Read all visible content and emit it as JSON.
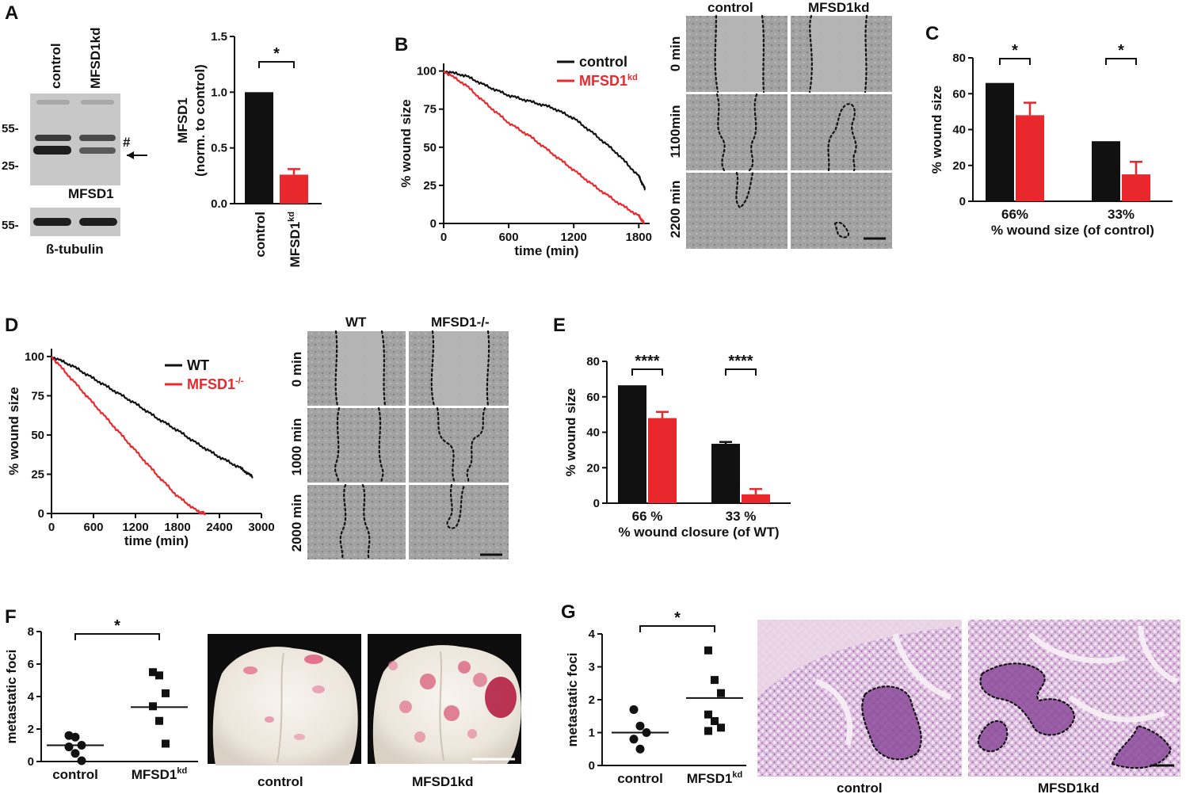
{
  "colors": {
    "control": "#111111",
    "knockdown": "#e8282d"
  },
  "chart_data": [
    {
      "panel": "A",
      "type": "blot",
      "lane_labels": [
        "control",
        "MFSD1kd"
      ],
      "markers_top": [
        "55-",
        "25-"
      ],
      "markers_bottom": [
        "55-"
      ],
      "blot_top_label": "MFSD1",
      "blot_bottom_label": "ß-tubulin",
      "annotation": "#"
    },
    {
      "panel": "A",
      "type": "bar",
      "categories": [
        "control",
        "MFSD1kd"
      ],
      "values": [
        1.0,
        0.26
      ],
      "errors": [
        0,
        0.05
      ],
      "ylabel": "MFSD1",
      "ylabel2": "(norm. to control)",
      "ylim": [
        0,
        1.5
      ],
      "yticks": [
        "0.0",
        "0.5",
        "1.0",
        "1.5"
      ],
      "significance": "*"
    },
    {
      "panel": "B",
      "type": "line",
      "series": [
        {
          "name": "control",
          "points": [
            [
              0,
              100
            ],
            [
              200,
              97
            ],
            [
              400,
              90
            ],
            [
              600,
              84
            ],
            [
              800,
              80
            ],
            [
              1000,
              76
            ],
            [
              1200,
              69
            ],
            [
              1400,
              58
            ],
            [
              1600,
              46
            ],
            [
              1800,
              31
            ],
            [
              1860,
              22
            ]
          ]
        },
        {
          "name": "MFSD1kd",
          "points": [
            [
              0,
              100
            ],
            [
              200,
              91
            ],
            [
              400,
              78
            ],
            [
              600,
              66
            ],
            [
              800,
              57
            ],
            [
              1000,
              46
            ],
            [
              1200,
              35
            ],
            [
              1400,
              24
            ],
            [
              1600,
              14
            ],
            [
              1800,
              5
            ],
            [
              1850,
              0
            ]
          ]
        }
      ],
      "xlabel": "time (min)",
      "ylabel": "% wound size",
      "xlim": [
        0,
        1900
      ],
      "ylim": [
        0,
        105
      ],
      "xticks": [
        "0",
        "600",
        "1200",
        "1800"
      ],
      "yticks": [
        "0",
        "25",
        "50",
        "75",
        "100"
      ]
    },
    {
      "panel": "B",
      "type": "image-grid",
      "columns": [
        "control",
        "MFSD1kd"
      ],
      "rows": [
        "0 min",
        "1100min",
        "2200 min"
      ]
    },
    {
      "panel": "C",
      "type": "bar",
      "categories": [
        "66%",
        "33%"
      ],
      "series": [
        {
          "name": "control",
          "values": [
            66,
            33.5
          ],
          "errors": [
            0,
            0
          ]
        },
        {
          "name": "MFSD1kd",
          "values": [
            48,
            15
          ],
          "errors": [
            7,
            7
          ]
        }
      ],
      "xlabel": "% wound size (of control)",
      "ylabel": "% wound size",
      "ylim": [
        0,
        80
      ],
      "yticks": [
        "0",
        "20",
        "40",
        "60",
        "80"
      ],
      "significance": [
        "*",
        "*"
      ]
    },
    {
      "panel": "D",
      "type": "line",
      "series": [
        {
          "name": "WT",
          "points": [
            [
              0,
              100
            ],
            [
              300,
              94
            ],
            [
              600,
              86
            ],
            [
              900,
              78
            ],
            [
              1200,
              70
            ],
            [
              1500,
              61
            ],
            [
              1800,
              53
            ],
            [
              2100,
              44
            ],
            [
              2400,
              36
            ],
            [
              2700,
              29
            ],
            [
              2880,
              23
            ]
          ]
        },
        {
          "name": "MFSD1-/-",
          "points": [
            [
              0,
              100
            ],
            [
              300,
              85
            ],
            [
              600,
              70
            ],
            [
              900,
              55
            ],
            [
              1200,
              40
            ],
            [
              1500,
              25
            ],
            [
              1800,
              11
            ],
            [
              2100,
              1
            ],
            [
              2200,
              0
            ]
          ]
        }
      ],
      "xlabel": "time (min)",
      "ylabel": "% wound size",
      "xlim": [
        0,
        3000
      ],
      "ylim": [
        0,
        105
      ],
      "xticks": [
        "0",
        "600",
        "1200",
        "1800",
        "2400",
        "3000"
      ],
      "yticks": [
        "0",
        "25",
        "50",
        "75",
        "100"
      ]
    },
    {
      "panel": "D",
      "type": "image-grid",
      "columns": [
        "WT",
        "MFSD1-/-"
      ],
      "rows": [
        "0 min",
        "1000 min",
        "2000 min"
      ]
    },
    {
      "panel": "E",
      "type": "bar",
      "categories": [
        "66 %",
        "33 %"
      ],
      "series": [
        {
          "name": "WT",
          "values": [
            66.5,
            33.5
          ],
          "errors": [
            0,
            1
          ]
        },
        {
          "name": "MFSD1-/-",
          "values": [
            48,
            5
          ],
          "errors": [
            3.5,
            3
          ]
        }
      ],
      "xlabel": "% wound closure (of WT)",
      "ylabel": "% wound size",
      "ylim": [
        0,
        80
      ],
      "yticks": [
        "0",
        "20",
        "40",
        "60",
        "80"
      ],
      "significance": [
        "****",
        "****"
      ]
    },
    {
      "panel": "F",
      "type": "scatter",
      "categories": [
        "control",
        "MFSD1kd"
      ],
      "points": [
        {
          "group": "control",
          "values": [
            1.6,
            1.5,
            1.0,
            0.9,
            0.5,
            0.05
          ]
        },
        {
          "group": "MFSD1kd",
          "values": [
            5.5,
            5.3,
            4.2,
            3.4,
            2.5,
            1.1
          ]
        }
      ],
      "means": [
        1.0,
        3.35
      ],
      "ylabel": "metastatic foci",
      "ylim": [
        0,
        8
      ],
      "yticks": [
        "0",
        "2",
        "4",
        "6",
        "8"
      ],
      "significance": "*",
      "photo_labels": [
        "control",
        "MFSD1kd"
      ]
    },
    {
      "panel": "G",
      "type": "scatter",
      "categories": [
        "control",
        "MFSD1kd"
      ],
      "points": [
        {
          "group": "control",
          "values": [
            1.7,
            1.2,
            1.0,
            0.8,
            0.5
          ]
        },
        {
          "group": "MFSD1kd",
          "values": [
            3.5,
            2.6,
            2.2,
            1.55,
            1.35,
            1.15,
            1.05
          ]
        }
      ],
      "means": [
        1.0,
        2.05
      ],
      "ylabel": "metastatic foci",
      "ylim": [
        0,
        4
      ],
      "yticks": [
        "0",
        "1",
        "2",
        "3",
        "4"
      ],
      "significance": "*",
      "photo_labels": [
        "control",
        "MFSD1kd"
      ]
    }
  ],
  "panel_labels": [
    "A",
    "B",
    "C",
    "D",
    "E",
    "F",
    "G"
  ]
}
